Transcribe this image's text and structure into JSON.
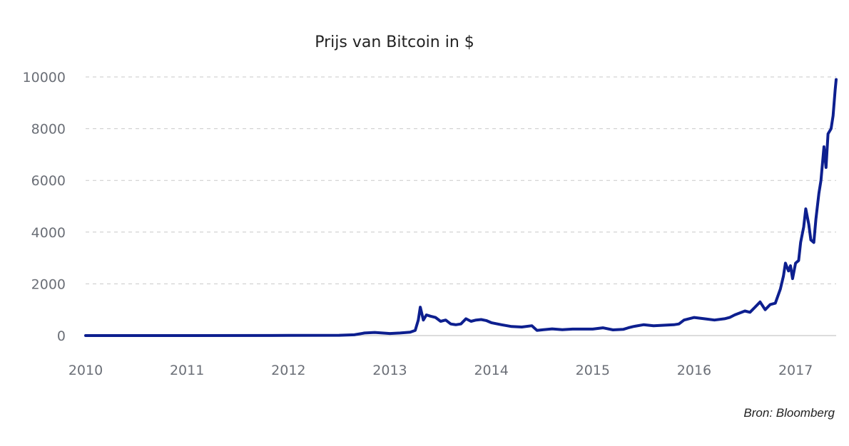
{
  "chart_data": {
    "type": "line",
    "title": "Prijs van Bitcoin in $",
    "xlabel": "",
    "ylabel": "",
    "source": "Bron: Bloomberg",
    "grid": true,
    "xlim": [
      2010.0,
      2017.4
    ],
    "ylim": [
      0,
      10000
    ],
    "x_ticks": [
      "2010",
      "2011",
      "2012",
      "2013",
      "2014",
      "2015",
      "2016",
      "2017"
    ],
    "y_ticks": [
      "0",
      "2000",
      "4000",
      "6000",
      "8000",
      "10000"
    ],
    "colors": {
      "series": "#0d1f8f",
      "grid": "#c9c9c9",
      "ticks": "#6b6f77"
    },
    "series": [
      {
        "x": [
          2010.0,
          2011.0,
          2012.0,
          2012.5,
          2012.65,
          2012.75,
          2012.85,
          2013.0,
          2013.1,
          2013.2,
          2013.25,
          2013.28,
          2013.3,
          2013.33,
          2013.36,
          2013.4,
          2013.45,
          2013.5,
          2013.55,
          2013.6,
          2013.65,
          2013.7,
          2013.75,
          2013.8,
          2013.85,
          2013.9,
          2013.95,
          2014.0,
          2014.1,
          2014.2,
          2014.3,
          2014.4,
          2014.45,
          2014.5,
          2014.6,
          2014.7,
          2014.8,
          2015.0,
          2015.1,
          2015.2,
          2015.3,
          2015.35,
          2015.4,
          2015.5,
          2015.6,
          2015.7,
          2015.8,
          2015.85,
          2015.9,
          2016.0,
          2016.1,
          2016.2,
          2016.3,
          2016.35,
          2016.4,
          2016.5,
          2016.55,
          2016.6,
          2016.65,
          2016.7,
          2016.75,
          2016.8,
          2016.85,
          2016.88,
          2016.9,
          2016.93,
          2016.95,
          2016.97,
          2017.0,
          2017.03,
          2017.05,
          2017.08,
          2017.1,
          2017.13,
          2017.15,
          2017.18,
          2017.2,
          2017.23,
          2017.25,
          2017.28,
          2017.3,
          2017.32,
          2017.35,
          2017.37,
          2017.39,
          2017.4
        ],
        "y": [
          0,
          1,
          5,
          10,
          30,
          100,
          120,
          80,
          100,
          130,
          200,
          600,
          1100,
          600,
          800,
          750,
          700,
          550,
          600,
          450,
          420,
          450,
          650,
          550,
          600,
          620,
          580,
          500,
          420,
          350,
          330,
          380,
          200,
          220,
          260,
          230,
          250,
          250,
          300,
          220,
          240,
          300,
          350,
          420,
          380,
          400,
          420,
          450,
          600,
          700,
          650,
          600,
          650,
          700,
          800,
          950,
          900,
          1100,
          1300,
          1000,
          1200,
          1250,
          1800,
          2300,
          2800,
          2500,
          2700,
          2200,
          2800,
          2900,
          3600,
          4200,
          4900,
          4300,
          3700,
          3600,
          4500,
          5500,
          6000,
          7300,
          6500,
          7800,
          8000,
          8500,
          9500,
          9900
        ]
      }
    ]
  }
}
